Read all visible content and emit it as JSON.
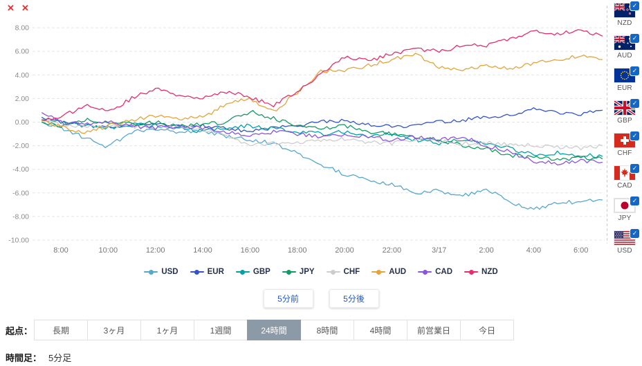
{
  "icons": {
    "check": "✓",
    "close": "✕"
  },
  "labels": {
    "origin": "起点：",
    "timeframe": "時間足：",
    "timeframe_value": "5分足"
  },
  "controls": {
    "back": "5分前",
    "forward": "5分後"
  },
  "origin_options": [
    {
      "label": "長期",
      "selected": false
    },
    {
      "label": "3ヶ月",
      "selected": false
    },
    {
      "label": "1ヶ月",
      "selected": false
    },
    {
      "label": "1週間",
      "selected": false
    },
    {
      "label": "24時間",
      "selected": true
    },
    {
      "label": "8時間",
      "selected": false
    },
    {
      "label": "4時間",
      "selected": false
    },
    {
      "label": "前営業日",
      "selected": false
    },
    {
      "label": "今日",
      "selected": false
    }
  ],
  "flags": [
    {
      "code": "NZD",
      "checked": true
    },
    {
      "code": "AUD",
      "checked": true
    },
    {
      "code": "EUR",
      "checked": true
    },
    {
      "code": "GBP",
      "checked": true
    },
    {
      "code": "CHF",
      "checked": true
    },
    {
      "code": "CAD",
      "checked": true
    },
    {
      "code": "JPY",
      "checked": true
    },
    {
      "code": "USD",
      "checked": true
    }
  ],
  "chart_data": {
    "type": "line",
    "title": "",
    "xlabel": "",
    "ylabel": "",
    "ylim": [
      -10,
      8
    ],
    "y_tick_step": 2,
    "grid": true,
    "legend_position": "bottom",
    "x_unit": "hour",
    "x_domain": [
      7.2,
      30.9
    ],
    "key_hours": [
      7.2,
      8,
      9,
      10,
      11,
      12,
      13,
      14,
      15,
      16,
      17,
      18,
      19,
      20,
      21,
      22,
      23,
      24,
      25,
      26,
      27,
      28,
      29,
      30,
      30.9
    ],
    "x_ticks": [
      {
        "t": 8,
        "label": "8:00"
      },
      {
        "t": 10,
        "label": "10:00"
      },
      {
        "t": 12,
        "label": "12:00"
      },
      {
        "t": 14,
        "label": "14:00"
      },
      {
        "t": 16,
        "label": "16:00"
      },
      {
        "t": 18,
        "label": "18:00"
      },
      {
        "t": 20,
        "label": "20:00"
      },
      {
        "t": 22,
        "label": "22:00"
      },
      {
        "t": 24,
        "label": "3/17"
      },
      {
        "t": 26,
        "label": "2:00"
      },
      {
        "t": 28,
        "label": "4:00"
      },
      {
        "t": 30,
        "label": "6:00"
      }
    ],
    "series": [
      {
        "name": "USD",
        "color": "#54A8CE",
        "values": [
          0.0,
          -0.5,
          -1.3,
          -2.1,
          -0.8,
          -0.6,
          -0.9,
          -0.7,
          -1.2,
          -1.5,
          -1.8,
          -2.6,
          -3.6,
          -4.4,
          -5.0,
          -5.3,
          -6.0,
          -5.8,
          -6.3,
          -5.6,
          -6.8,
          -7.4,
          -6.9,
          -6.7,
          -6.6
        ]
      },
      {
        "name": "EUR",
        "color": "#3353C9",
        "values": [
          0.4,
          0.0,
          -0.3,
          -0.5,
          -0.3,
          -0.2,
          -0.4,
          -0.3,
          -0.5,
          -0.8,
          -0.5,
          -0.3,
          0.0,
          0.2,
          -0.2,
          -0.4,
          -0.3,
          0.0,
          0.2,
          0.4,
          0.6,
          1.1,
          0.8,
          0.7,
          1.0
        ]
      },
      {
        "name": "GBP",
        "color": "#00A2A8",
        "values": [
          0.2,
          0.0,
          -0.3,
          -0.5,
          -0.2,
          -0.3,
          -0.5,
          -0.8,
          -0.5,
          -0.3,
          -0.6,
          -0.8,
          -1.0,
          -0.8,
          -1.2,
          -1.0,
          -1.5,
          -1.8,
          -1.5,
          -1.8,
          -2.2,
          -2.8,
          -2.6,
          -2.8,
          -2.9
        ]
      },
      {
        "name": "JPY",
        "color": "#129B63",
        "values": [
          0.0,
          -0.3,
          0.2,
          0.0,
          -0.2,
          0.0,
          -0.3,
          -0.2,
          0.0,
          0.9,
          0.3,
          -0.3,
          -0.5,
          -0.3,
          -0.8,
          -1.0,
          -1.3,
          -1.5,
          -2.0,
          -2.3,
          -2.8,
          -3.0,
          -3.2,
          -3.0,
          -3.1
        ]
      },
      {
        "name": "CHF",
        "color": "#CDCDCD",
        "values": [
          0.1,
          -0.2,
          -0.4,
          -0.3,
          -0.4,
          -0.5,
          -0.4,
          -0.6,
          -1.2,
          -2.0,
          -1.8,
          -1.7,
          -1.5,
          -1.4,
          -1.7,
          -1.8,
          -1.5,
          -1.6,
          -1.8,
          -1.7,
          -1.9,
          -2.0,
          -2.1,
          -2.2,
          -2.0
        ]
      },
      {
        "name": "AUD",
        "color": "#E2A43B",
        "values": [
          0.1,
          -0.4,
          -0.9,
          -0.3,
          0.2,
          0.5,
          0.3,
          0.4,
          1.5,
          2.0,
          0.9,
          2.5,
          4.3,
          4.4,
          4.8,
          5.3,
          5.7,
          4.7,
          4.5,
          4.8,
          4.5,
          5.0,
          5.3,
          5.6,
          5.3
        ]
      },
      {
        "name": "CAD",
        "color": "#8A55E0",
        "values": [
          0.8,
          0.0,
          -0.2,
          0.0,
          -0.3,
          -0.5,
          -0.3,
          -0.5,
          -0.8,
          -1.2,
          -0.8,
          -1.0,
          -1.2,
          -1.0,
          -1.3,
          -1.5,
          -1.3,
          -1.5,
          -1.2,
          -2.0,
          -2.5,
          -3.3,
          -3.5,
          -3.3,
          -3.4
        ]
      },
      {
        "name": "NZD",
        "color": "#E62E6B",
        "values": [
          0.2,
          0.4,
          1.4,
          0.9,
          2.0,
          2.9,
          2.3,
          2.0,
          2.6,
          2.1,
          1.4,
          2.6,
          4.0,
          5.5,
          5.2,
          5.8,
          6.2,
          6.0,
          6.5,
          6.5,
          7.0,
          7.8,
          7.5,
          7.8,
          7.3
        ]
      }
    ]
  }
}
